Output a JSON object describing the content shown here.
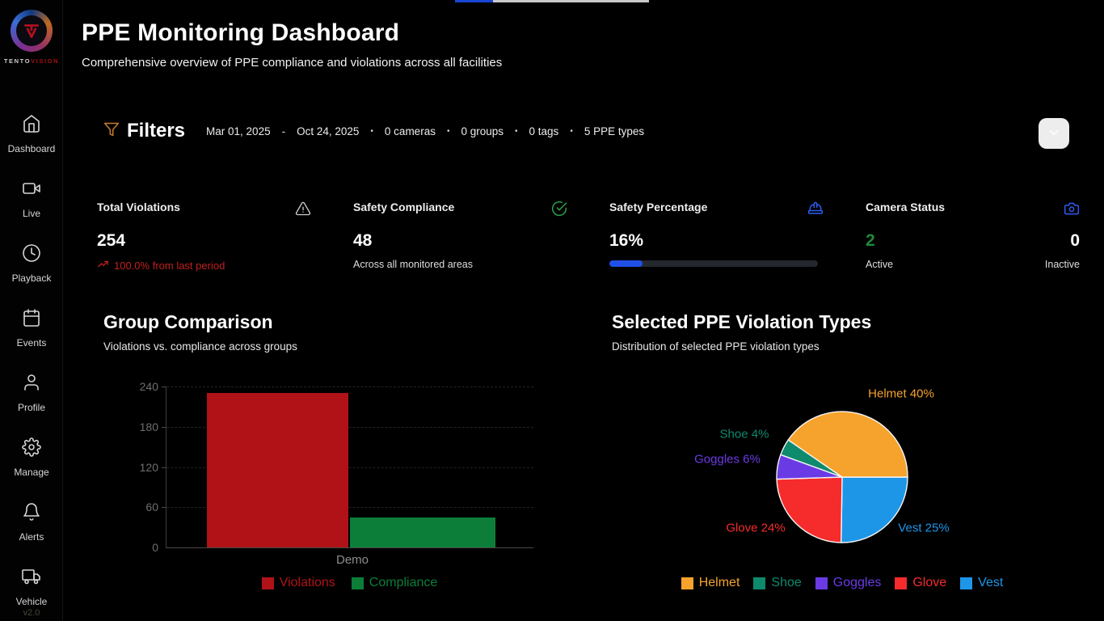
{
  "brand": {
    "name_top": "TENTO",
    "name_accent": "VISION",
    "version": "v2.0"
  },
  "sidebar": {
    "items": [
      {
        "label": "Dashboard",
        "icon": "home-icon"
      },
      {
        "label": "Live",
        "icon": "video-camera-icon"
      },
      {
        "label": "Playback",
        "icon": "clock-icon"
      },
      {
        "label": "Events",
        "icon": "calendar-icon"
      },
      {
        "label": "Profile",
        "icon": "person-icon"
      },
      {
        "label": "Manage",
        "icon": "gear-icon"
      },
      {
        "label": "Alerts",
        "icon": "bell-icon"
      },
      {
        "label": "Vehicle",
        "icon": "truck-icon"
      }
    ]
  },
  "header": {
    "title": "PPE Monitoring Dashboard",
    "subtitle": "Comprehensive overview of PPE compliance and violations across all facilities"
  },
  "filters": {
    "label": "Filters",
    "date_start": "Mar 01, 2025",
    "date_dash": "-",
    "date_end": "Oct 24, 2025",
    "dot": "•",
    "cameras": "0 cameras",
    "groups": "0 groups",
    "tags": "0 tags",
    "ppe_types": "5 PPE types"
  },
  "stats": {
    "total_violations": {
      "title": "Total Violations",
      "value": "254",
      "trend": "100.0% from last period"
    },
    "safety_compliance": {
      "title": "Safety Compliance",
      "value": "48",
      "subtitle": "Across all monitored areas"
    },
    "safety_percentage": {
      "title": "Safety Percentage",
      "value": "16%",
      "percent": 16
    },
    "camera_status": {
      "title": "Camera Status",
      "active_value": "2",
      "active_label": "Active",
      "inactive_value": "0",
      "inactive_label": "Inactive"
    }
  },
  "colors": {
    "progress_blue": "#2150e8",
    "active_green": "#1e8a3c",
    "trend_red": "#c21f1f",
    "funnel_orange": "#c87c2e",
    "icon_blue": "#2b5cf0",
    "check_green": "#27a04b"
  },
  "chart_data": [
    {
      "type": "bar",
      "title": "Group Comparison",
      "subtitle": "Violations vs. compliance across groups",
      "categories": [
        "Demo"
      ],
      "series": [
        {
          "name": "Violations",
          "values": [
            230
          ],
          "color": "#b01217"
        },
        {
          "name": "Compliance",
          "values": [
            45
          ],
          "color": "#0c7e3a"
        }
      ],
      "ylim": [
        0,
        240
      ],
      "yticks": [
        0,
        60,
        120,
        180,
        240
      ],
      "grid": true,
      "legend_position": "bottom"
    },
    {
      "type": "pie",
      "title": "Selected PPE Violation Types",
      "subtitle": "Distribution of selected PPE violation types",
      "slices": [
        {
          "label": "Helmet",
          "percent": 40,
          "color": "#f5a32c",
          "display": "Helmet 40%"
        },
        {
          "label": "Shoe",
          "percent": 4,
          "color": "#0e8a6d",
          "display": "Shoe 4%"
        },
        {
          "label": "Goggles",
          "percent": 6,
          "color": "#6a3be5",
          "display": "Goggles 6%"
        },
        {
          "label": "Glove",
          "percent": 24,
          "color": "#f62b2b",
          "display": "Glove 24%"
        },
        {
          "label": "Vest",
          "percent": 25,
          "color": "#1d96e8",
          "display": "Vest 25%"
        }
      ],
      "clockwise_order_from_right": [
        "Vest",
        "Glove",
        "Goggles",
        "Shoe",
        "Helmet"
      ],
      "legend": [
        "Helmet",
        "Shoe",
        "Goggles",
        "Glove",
        "Vest"
      ],
      "legend_position": "bottom"
    }
  ]
}
